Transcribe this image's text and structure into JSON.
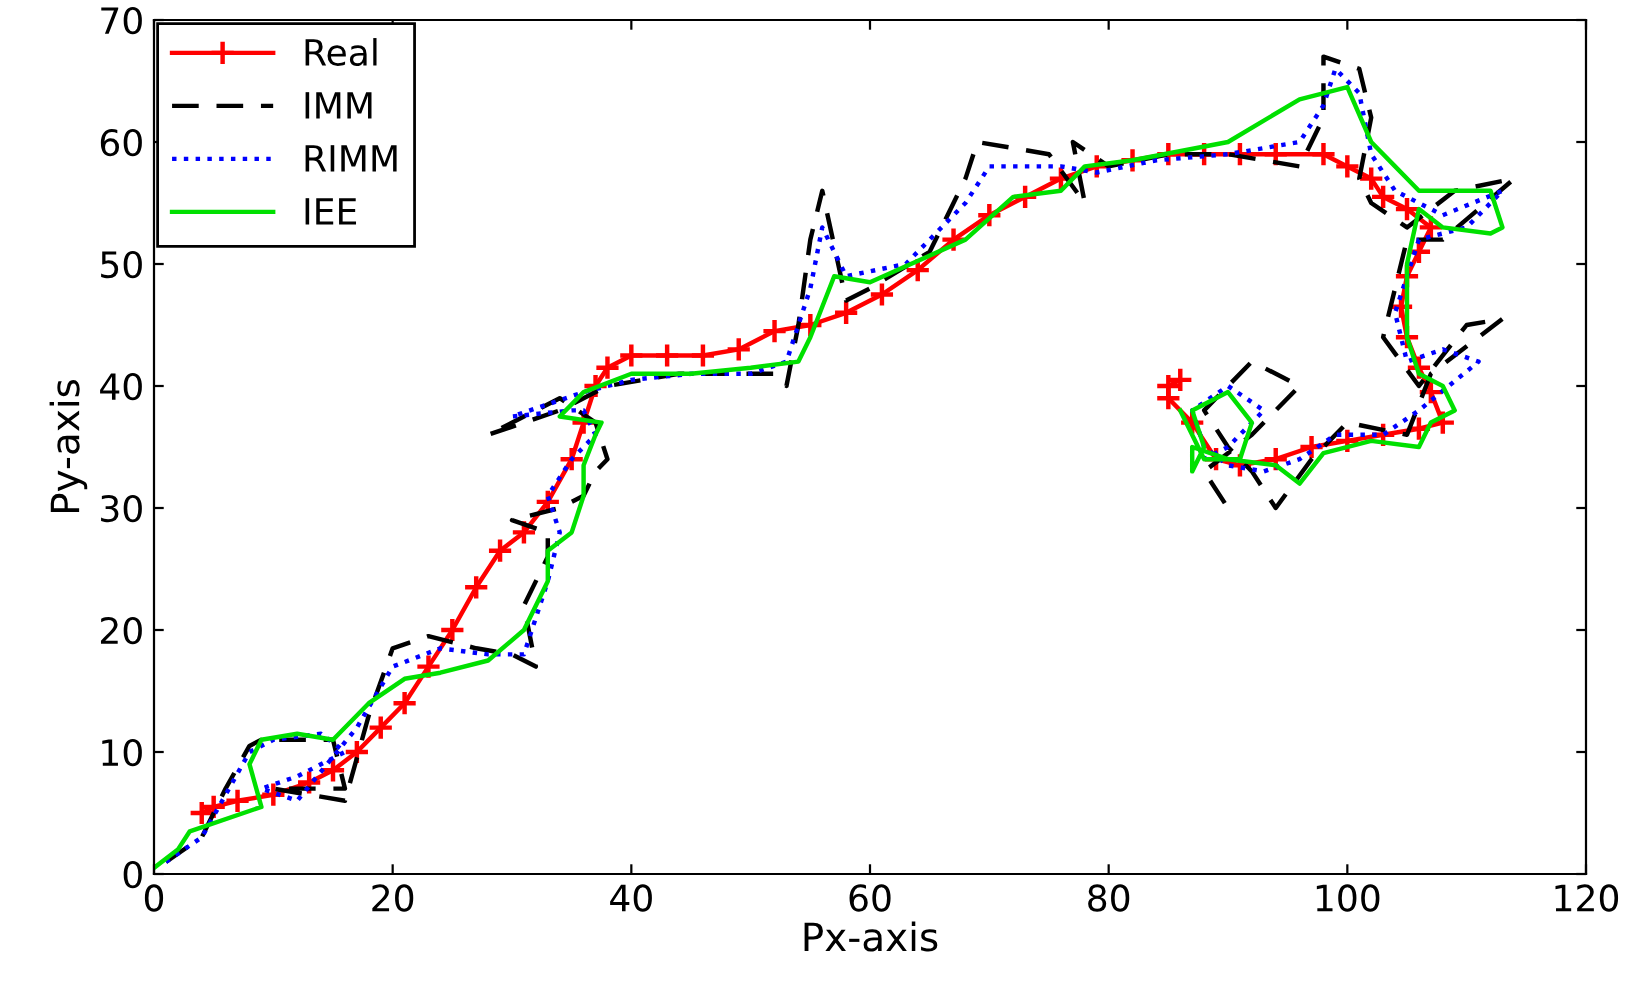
{
  "chart_data": {
    "type": "line",
    "xlabel": "Px-axis",
    "ylabel": "Py-axis",
    "xlim": [
      0,
      120
    ],
    "ylim": [
      0,
      70
    ],
    "xticks": [
      0,
      20,
      40,
      60,
      80,
      100,
      120
    ],
    "yticks": [
      0,
      10,
      20,
      30,
      40,
      50,
      60,
      70
    ],
    "grid": false,
    "legend": "top left",
    "series": [
      {
        "name": "Real",
        "color": "#ff0000",
        "marker": "cross",
        "line_style": "solid",
        "x": [
          4,
          5,
          7,
          10,
          13,
          15,
          17,
          19,
          21,
          23,
          25,
          27,
          29,
          31,
          33,
          35,
          36,
          37,
          38,
          40,
          43,
          46,
          49,
          52,
          55,
          58,
          61,
          64,
          67,
          70,
          73,
          76,
          79,
          82,
          85,
          88,
          91,
          94,
          98,
          100,
          102,
          103,
          105,
          107,
          106,
          105,
          104.5,
          105,
          106,
          107,
          108,
          106,
          103,
          100,
          97,
          94,
          91,
          89,
          87,
          85,
          85,
          86
        ],
        "values": [
          5,
          5.5,
          6,
          6.5,
          7.5,
          8.5,
          10,
          12,
          14,
          17,
          20,
          23.5,
          26.5,
          28,
          30.5,
          34,
          37,
          40,
          41.5,
          42.5,
          42.5,
          42.5,
          43,
          44.5,
          45,
          46,
          47.5,
          49.5,
          52,
          54,
          55.5,
          57,
          58,
          58.5,
          59,
          59,
          59,
          59,
          59,
          58,
          57,
          55.5,
          54.5,
          53,
          51,
          49,
          46.5,
          44,
          41.5,
          39.5,
          37,
          36.5,
          36,
          35.5,
          35,
          34,
          33.5,
          34,
          37,
          39,
          40,
          40.5
        ]
      },
      {
        "name": "IMM",
        "color": "#000000",
        "marker": "none",
        "line_style": "dashed",
        "x": [
          1,
          4,
          6,
          8,
          9,
          15,
          16,
          10,
          16,
          18,
          20,
          23,
          27,
          30,
          32,
          31,
          33,
          33,
          30,
          34,
          36,
          37,
          38,
          37,
          34,
          28,
          34,
          38,
          44,
          48,
          52,
          53,
          54,
          55,
          56,
          58,
          60,
          65,
          68,
          69,
          75,
          78,
          77,
          80,
          85,
          90,
          96,
          98,
          98,
          101,
          102,
          101,
          102,
          105,
          109,
          114,
          108,
          105,
          103,
          106,
          110,
          113,
          107,
          105,
          100,
          97,
          94,
          92,
          90,
          88,
          92,
          96,
          92,
          88,
          90
        ],
        "values": [
          1,
          3,
          7,
          10.5,
          11,
          11,
          7,
          7,
          6,
          13,
          18.5,
          19.5,
          18.5,
          18,
          17,
          22,
          26,
          28,
          29,
          30,
          31,
          33,
          34,
          37,
          39,
          36,
          38,
          40,
          41,
          41,
          41,
          40,
          45,
          52,
          56,
          47,
          48,
          51,
          57,
          60,
          59,
          55,
          60,
          58,
          59,
          59,
          58,
          62,
          67,
          66,
          62,
          57,
          55,
          53,
          56,
          57,
          52,
          52,
          44,
          40,
          45,
          45.5,
          41,
          36,
          37,
          34,
          30,
          33,
          35,
          38,
          42,
          40,
          36,
          33,
          30
        ]
      },
      {
        "name": "RIMM",
        "color": "#0000ff",
        "marker": "none",
        "line_style": "dotted",
        "x": [
          1,
          4,
          6,
          8,
          10,
          14,
          16,
          12,
          9,
          12,
          17,
          20,
          24,
          28,
          31,
          33,
          34,
          33,
          35,
          37,
          36,
          35,
          30,
          36,
          40,
          45,
          50,
          53,
          55,
          56,
          58,
          63,
          68,
          70,
          76,
          79,
          84,
          90,
          96,
          98,
          99,
          101,
          102,
          104,
          108,
          113,
          110,
          106,
          104,
          105,
          108,
          111,
          106,
          103,
          99,
          96,
          93,
          90,
          88,
          87,
          90,
          93,
          90,
          88
        ],
        "values": [
          1,
          3,
          6.5,
          10,
          11,
          11.5,
          10,
          8,
          7,
          6,
          12,
          17,
          18.5,
          18,
          18,
          24,
          28,
          31,
          34,
          36,
          38,
          38,
          37.5,
          39.5,
          40.5,
          41,
          41,
          42,
          48,
          53,
          49,
          50,
          55,
          58,
          58,
          57.5,
          58.5,
          59,
          60,
          63,
          66,
          64,
          59,
          56,
          54,
          56,
          53,
          52,
          46,
          42,
          43,
          42,
          38,
          36,
          36,
          34,
          33,
          33.5,
          35,
          38,
          40,
          38,
          35,
          34
        ]
      },
      {
        "name": "IEE",
        "color": "#00e000",
        "marker": "none",
        "line_style": "solid",
        "x": [
          0,
          2,
          3,
          9,
          8,
          9,
          12,
          15,
          18,
          21,
          24,
          28,
          31,
          33,
          33,
          35,
          36,
          36,
          37,
          37.5,
          34,
          36,
          40,
          45,
          50,
          54,
          55,
          57,
          60,
          68,
          72,
          76,
          78,
          82,
          90,
          96,
          100,
          102,
          104,
          106,
          112,
          113,
          112,
          108,
          106,
          105,
          105,
          106,
          108,
          109,
          107,
          106,
          102,
          98,
          96,
          94,
          90,
          87,
          87,
          88,
          87,
          90,
          92,
          91,
          88,
          86
        ],
        "values": [
          0.5,
          2,
          3.5,
          5.5,
          9,
          11,
          11.5,
          11,
          14,
          16,
          16.5,
          17.5,
          20,
          24,
          26.5,
          28,
          31,
          33.5,
          36,
          37,
          37.5,
          39.5,
          41,
          41,
          41.5,
          42,
          44,
          49,
          48.5,
          52,
          55.5,
          56,
          58,
          58.5,
          60,
          63.5,
          64.5,
          60,
          58,
          56,
          56,
          53,
          52.5,
          53,
          54.5,
          50,
          44,
          41,
          40,
          38,
          37,
          35,
          35.5,
          34.5,
          32,
          33.5,
          34,
          35,
          33,
          35,
          38,
          39.5,
          37,
          34,
          34,
          38
        ]
      }
    ]
  }
}
